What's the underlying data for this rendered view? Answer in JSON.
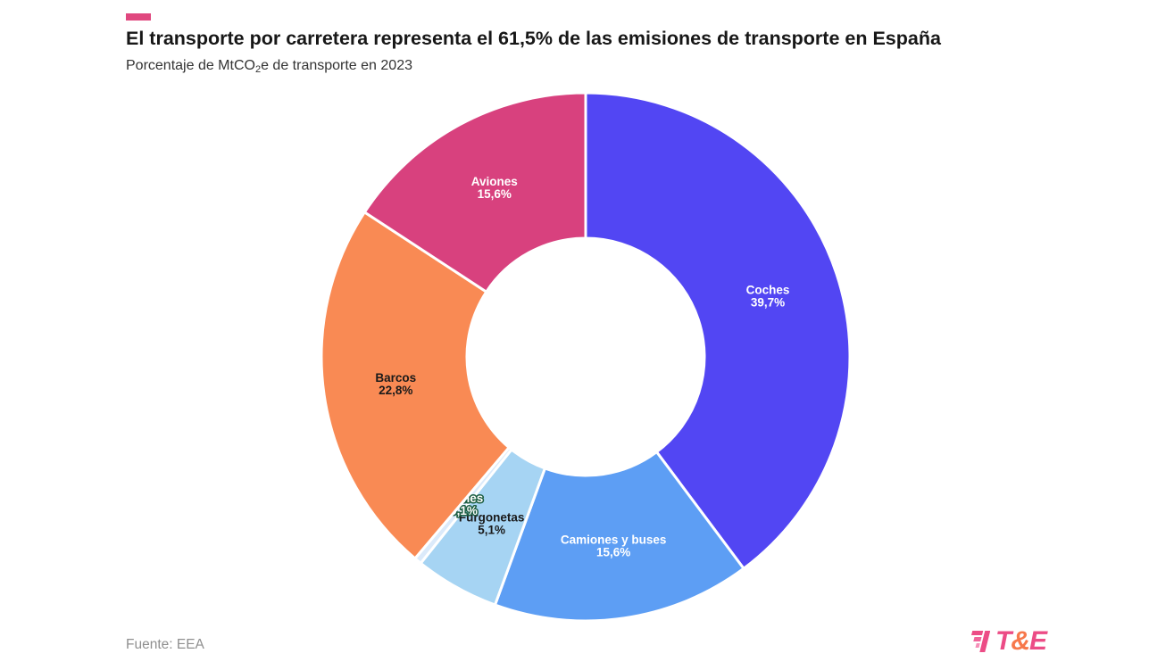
{
  "header": {
    "accent_color": "#e0487f",
    "title": "El transporte por carretera representa el 61,5% de las emisiones de transporte en España",
    "subtitle_prefix": "Porcentaje de MtCO",
    "subtitle_sub": "2",
    "subtitle_suffix": "e de transporte en 2023"
  },
  "chart_data": {
    "type": "pie",
    "variant": "donut",
    "title": "El transporte por carretera representa el 61,5% de las emisiones de transporte en España",
    "subtitle": "Porcentaje de MtCO₂e de transporte en 2023",
    "unit": "%",
    "legend": "none (labels placed on slices)",
    "start_angle_deg": 0,
    "direction": "clockwise",
    "segments": [
      {
        "label": "Coches",
        "value": 39.7,
        "value_display": "39,7%",
        "color": "#5246f3",
        "label_color": "#ffffff"
      },
      {
        "label": "Camiones y buses",
        "value": 15.6,
        "value_display": "15,6%",
        "color": "#5d9ef4",
        "label_color": "#ffffff"
      },
      {
        "label": "Furgonetas",
        "value": 5.1,
        "value_display": "5,1%",
        "color": "#a6d4f3",
        "label_color": "#1a1a1a"
      },
      {
        "label": "Trenes",
        "value": 0.1,
        "value_display": "0,1%",
        "color": "#dbeafa",
        "label_color": "#ffffff",
        "label_outline": "#1a5c40"
      },
      {
        "label": "Barcos",
        "value": 22.8,
        "value_display": "22,8%",
        "color": "#f98a54",
        "label_color": "#1a1a1a"
      },
      {
        "label": "Aviones",
        "value": 15.6,
        "value_display": "15,6%",
        "color": "#d8417e",
        "label_color": "#ffffff"
      }
    ]
  },
  "footer": {
    "source": "Fuente: EEA",
    "logo": {
      "t": "T",
      "amp": "&",
      "e": "E",
      "pink": "#ec4c86",
      "orange": "#f7784b",
      "stripe_colors": [
        "#ec4c86",
        "#f0649a",
        "#f58fb8"
      ]
    }
  }
}
